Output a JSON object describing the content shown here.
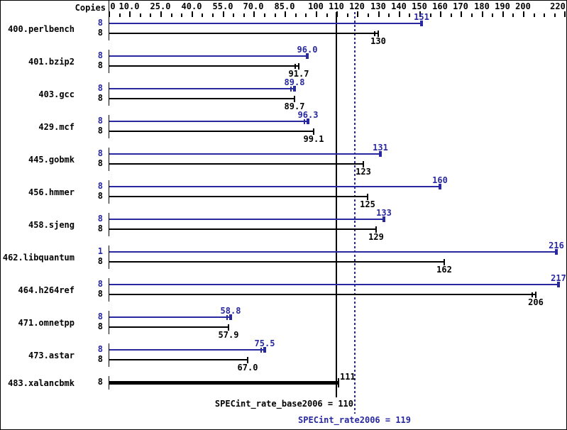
{
  "header": {
    "copies_label": "Copies"
  },
  "footer": {
    "base_result_label": "SPECint_rate_base2006 = 110",
    "peak_result_label": "SPECint_rate2006 = 119"
  },
  "colors": {
    "peak_blue": "#2828a0",
    "base_black": "#000000",
    "background": "#ffffff"
  },
  "chart_data": {
    "type": "bar",
    "orientation": "horizontal",
    "title": "SPECint_rate2006 benchmark results",
    "xlim": [
      0,
      220
    ],
    "x_tick_step": 5,
    "grid": false,
    "x_tick_labels": [
      {
        "value": 0,
        "label": "0"
      },
      {
        "value": 10,
        "label": "10.0"
      },
      {
        "value": 25,
        "label": "25.0"
      },
      {
        "value": 40,
        "label": "40.0"
      },
      {
        "value": 55,
        "label": "55.0"
      },
      {
        "value": 70,
        "label": "70.0"
      },
      {
        "value": 85,
        "label": "85.0"
      },
      {
        "value": 100,
        "label": "100"
      },
      {
        "value": 110,
        "label": "110"
      },
      {
        "value": 120,
        "label": "120"
      },
      {
        "value": 130,
        "label": "130"
      },
      {
        "value": 140,
        "label": "140"
      },
      {
        "value": 150,
        "label": "150"
      },
      {
        "value": 160,
        "label": "160"
      },
      {
        "value": 170,
        "label": "170"
      },
      {
        "value": 180,
        "label": "180"
      },
      {
        "value": 190,
        "label": "190"
      },
      {
        "value": 200,
        "label": "200"
      },
      {
        "value": 220,
        "label": "220"
      }
    ],
    "categories": [
      "400.perlbench",
      "401.bzip2",
      "403.gcc",
      "429.mcf",
      "445.gobmk",
      "456.hmmer",
      "458.sjeng",
      "462.libquantum",
      "464.h264ref",
      "471.omnetpp",
      "473.astar",
      "483.xalancbmk"
    ],
    "series": [
      {
        "name": "peak",
        "color": "#2828a0",
        "data": [
          {
            "copies": 8,
            "value": 151,
            "label": "151"
          },
          {
            "copies": 8,
            "value": 96.0,
            "label": "96.0"
          },
          {
            "copies": 8,
            "value": 89.8,
            "label": "89.8",
            "range_tick": true
          },
          {
            "copies": 8,
            "value": 96.3,
            "label": "96.3",
            "range_tick": true
          },
          {
            "copies": 8,
            "value": 131,
            "label": "131"
          },
          {
            "copies": 8,
            "value": 160,
            "label": "160"
          },
          {
            "copies": 8,
            "value": 133,
            "label": "133"
          },
          {
            "copies": 1,
            "value": 216,
            "label": "216"
          },
          {
            "copies": 8,
            "value": 217,
            "label": "217"
          },
          {
            "copies": 8,
            "value": 58.8,
            "label": "58.8",
            "range_tick": true
          },
          {
            "copies": 8,
            "value": 75.5,
            "label": "75.5",
            "range_tick": true
          },
          null
        ]
      },
      {
        "name": "base",
        "color": "#000000",
        "data": [
          {
            "copies": 8,
            "value": 130,
            "label": "130",
            "range_tick": true
          },
          {
            "copies": 8,
            "value": 91.7,
            "label": "91.7",
            "range_tick": true
          },
          {
            "copies": 8,
            "value": 89.7,
            "label": "89.7"
          },
          {
            "copies": 8,
            "value": 99.1,
            "label": "99.1"
          },
          {
            "copies": 8,
            "value": 123,
            "label": "123"
          },
          {
            "copies": 8,
            "value": 125,
            "label": "125"
          },
          {
            "copies": 8,
            "value": 129,
            "label": "129"
          },
          {
            "copies": 8,
            "value": 162,
            "label": "162"
          },
          {
            "copies": 8,
            "value": 206,
            "label": "206",
            "range_tick": true
          },
          {
            "copies": 8,
            "value": 57.9,
            "label": "57.9"
          },
          {
            "copies": 8,
            "value": 67.0,
            "label": "67.0"
          },
          {
            "copies": 8,
            "value": 111,
            "label": "111"
          }
        ]
      }
    ],
    "reference_lines": [
      {
        "name": "base",
        "label": "SPECint_rate_base2006 = 110",
        "value": 110,
        "style": "solid",
        "color": "#000000"
      },
      {
        "name": "peak",
        "label": "SPECint_rate2006 = 119",
        "value": 119,
        "style": "dotted",
        "color": "#2828a0"
      }
    ],
    "legend_position": "none"
  }
}
